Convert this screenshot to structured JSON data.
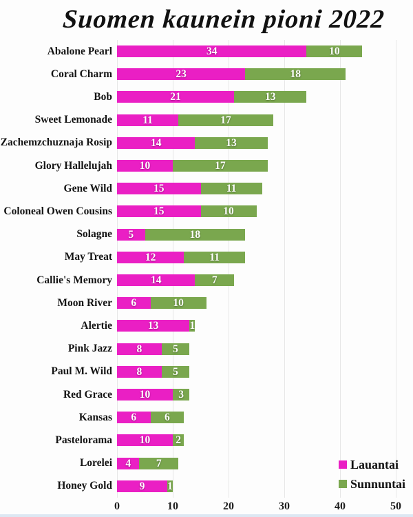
{
  "chart_data": {
    "type": "bar",
    "orientation": "horizontal",
    "stacked": true,
    "title": "Suomen kaunein pioni 2022",
    "categories": [
      "Abalone Pearl",
      "Coral Charm",
      "Bob",
      "Sweet Lemonade",
      "Zachemzchuznaja Rosip",
      "Glory Hallelujah",
      "Gene Wild",
      "Coloneal Owen Cousins",
      "Solagne",
      "May Treat",
      "Callie's Memory",
      "Moon River",
      "Alertie",
      "Pink Jazz",
      "Paul M. Wild",
      "Red Grace",
      "Kansas",
      "Pastelorama",
      "Lorelei",
      "Honey Gold"
    ],
    "series": [
      {
        "name": "Lauantai",
        "color": "#EA1FC4",
        "values": [
          34,
          23,
          21,
          11,
          14,
          10,
          15,
          15,
          5,
          12,
          14,
          6,
          13,
          8,
          8,
          10,
          6,
          10,
          4,
          9
        ]
      },
      {
        "name": "Sunnuntai",
        "color": "#7AA74E",
        "values": [
          10,
          18,
          13,
          17,
          13,
          17,
          11,
          10,
          18,
          11,
          7,
          10,
          1,
          5,
          5,
          3,
          6,
          2,
          7,
          1
        ]
      }
    ],
    "x_ticks": [
      0,
      10,
      20,
      30,
      40,
      50
    ],
    "xlim": [
      0,
      50
    ],
    "grid": true,
    "legend_position": "bottom-right",
    "value_labels": "inside-white-bold",
    "colors": {
      "background": "#fdfdfd",
      "gridline": "#e7e7e7",
      "text": "#141414",
      "bottom_strip": "#dde8f3"
    }
  }
}
